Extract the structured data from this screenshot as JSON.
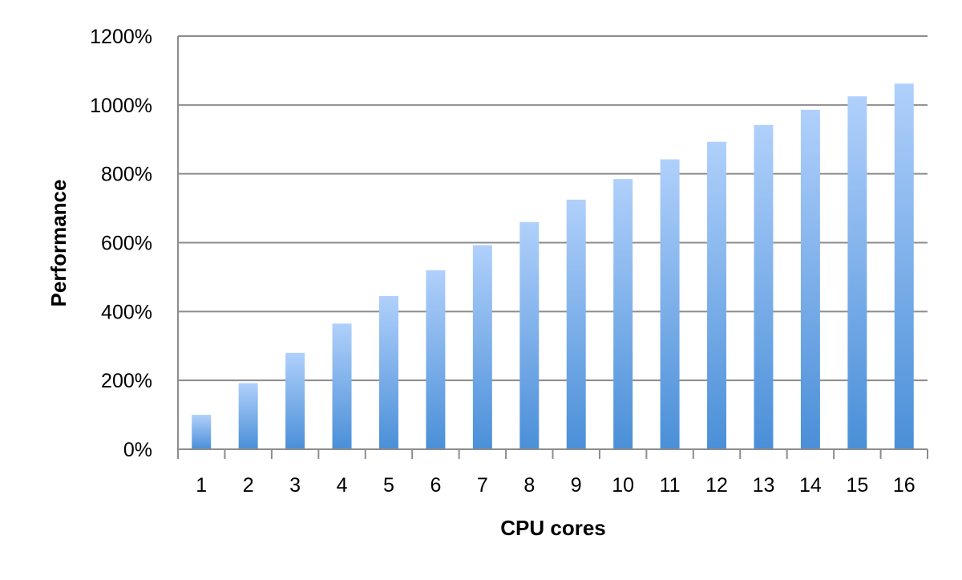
{
  "chart_data": {
    "type": "bar",
    "title": "",
    "xlabel": "CPU cores",
    "ylabel": "Performance",
    "categories": [
      "1",
      "2",
      "3",
      "4",
      "5",
      "6",
      "7",
      "8",
      "9",
      "10",
      "11",
      "12",
      "13",
      "14",
      "15",
      "16"
    ],
    "series": [
      {
        "values": [
          100,
          192,
          280,
          365,
          445,
          520,
          593,
          660,
          725,
          785,
          842,
          893,
          942,
          986,
          1025,
          1062
        ]
      }
    ],
    "ylim": [
      0,
      1200
    ],
    "yticks": [
      0,
      200,
      400,
      600,
      800,
      1000,
      1200
    ],
    "ytick_labels": [
      "0%",
      "200%",
      "400%",
      "600%",
      "800%",
      "1000%",
      "1200%"
    ],
    "value_unit": "%",
    "grid": true,
    "legend": "none",
    "colors": {
      "bar_top": "#b0d0fb",
      "bar_bottom": "#4a8fd8",
      "grid": "#8c8c8c",
      "axis": "#8c8c8c"
    }
  }
}
